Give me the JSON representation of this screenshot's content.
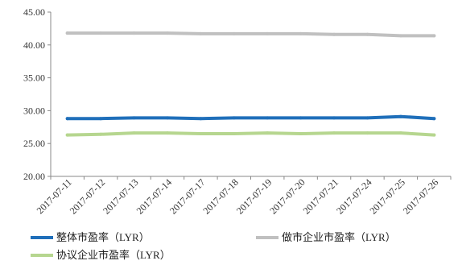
{
  "chart_data": {
    "type": "line",
    "title": "",
    "xlabel": "",
    "ylabel": "",
    "ylim": [
      20,
      45
    ],
    "yticks": [
      "20.00",
      "25.00",
      "30.00",
      "35.00",
      "40.00",
      "45.00"
    ],
    "grid": false,
    "legend_position": "bottom",
    "categories": [
      "2017-07-11",
      "2017-07-12",
      "2017-07-13",
      "2017-07-14",
      "2017-07-17",
      "2017-07-18",
      "2017-07-19",
      "2017-07-20",
      "2017-07-21",
      "2017-07-24",
      "2017-07-25",
      "2017-07-26"
    ],
    "series": [
      {
        "name": "整体市盈率（LYR）",
        "color": "#1f6fba",
        "values": [
          28.8,
          28.8,
          28.9,
          28.9,
          28.8,
          28.9,
          28.9,
          28.9,
          28.9,
          28.9,
          29.1,
          28.8
        ]
      },
      {
        "name": "做市企业市盈率（LYR）",
        "color": "#c0c0c0",
        "values": [
          41.8,
          41.8,
          41.8,
          41.8,
          41.7,
          41.7,
          41.7,
          41.7,
          41.6,
          41.6,
          41.4,
          41.4
        ]
      },
      {
        "name": "协议企业市盈率（LYR）",
        "color": "#b6d68f",
        "values": [
          26.3,
          26.4,
          26.6,
          26.6,
          26.5,
          26.5,
          26.6,
          26.5,
          26.6,
          26.6,
          26.6,
          26.3
        ]
      }
    ]
  }
}
